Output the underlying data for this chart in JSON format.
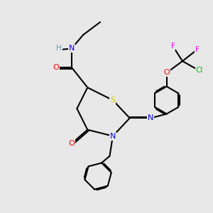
{
  "background_color": "#e8e8e8",
  "atom_colors": {
    "C": "#000000",
    "N": "#0000ff",
    "O": "#ff0000",
    "S": "#cccc00",
    "H": "#6699aa",
    "F": "#ff00ff",
    "Cl": "#00bb00"
  },
  "bond_color": "#000000"
}
